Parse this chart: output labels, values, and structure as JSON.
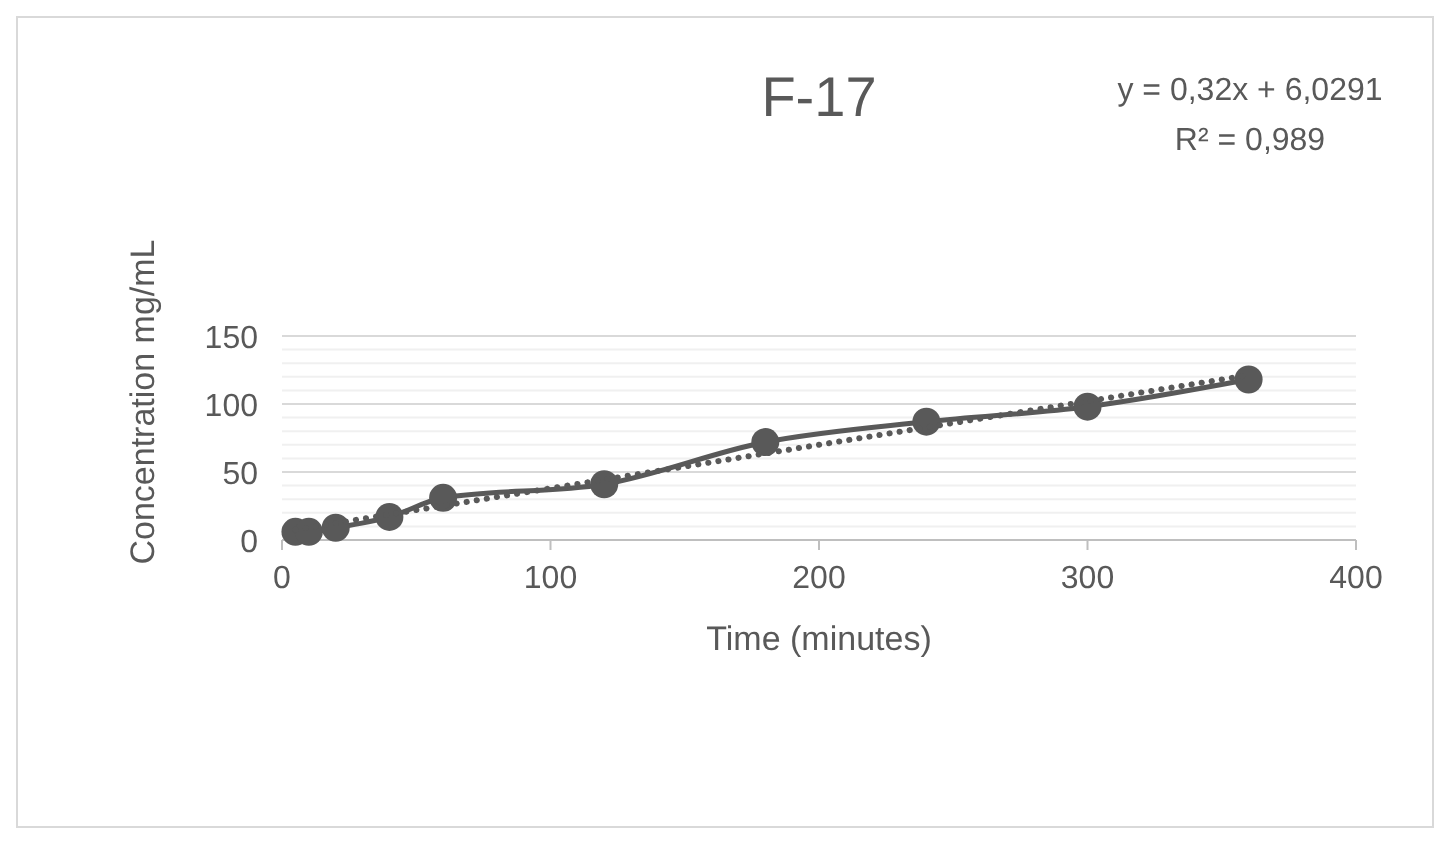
{
  "chart_data": {
    "type": "line",
    "title": "F-17",
    "xlabel": "Time (minutes)",
    "ylabel": "Concentration mg/mL",
    "x": [
      5,
      10,
      20,
      40,
      60,
      120,
      180,
      240,
      300,
      360
    ],
    "series": [
      {
        "color": "#595959",
        "values": [
          6,
          6,
          9,
          17,
          31,
          41,
          72,
          87,
          98,
          118
        ],
        "marker": "circle",
        "line_style": "solid"
      },
      {
        "type": "line",
        "color": "#595959",
        "x": [
          5,
          360
        ],
        "values": [
          7.6,
          121.2
        ],
        "marker": "none",
        "line_style": "dotted"
      }
    ],
    "xlim": [
      0,
      400
    ],
    "xticks": [
      0,
      100,
      200,
      300,
      400
    ],
    "ylim": [
      0,
      150
    ],
    "yticks": [
      0,
      {
        "value": 10,
        "label": null
      },
      {
        "value": 20,
        "label": null
      },
      {
        "value": 30,
        "label": null
      },
      {
        "value": 40,
        "label": null
      },
      50,
      {
        "value": 60,
        "label": null
      },
      {
        "value": 70,
        "label": null
      },
      {
        "value": 80,
        "label": null
      },
      {
        "value": 90,
        "label": null
      },
      100,
      {
        "value": 110,
        "label": null
      },
      {
        "value": 120,
        "label": null
      },
      {
        "value": 130,
        "label": null
      },
      {
        "value": 140,
        "label": null
      },
      150
    ],
    "grid": "y",
    "annotations": [
      "y = 0,32x + 6,0291",
      "R² = 0,989"
    ]
  }
}
